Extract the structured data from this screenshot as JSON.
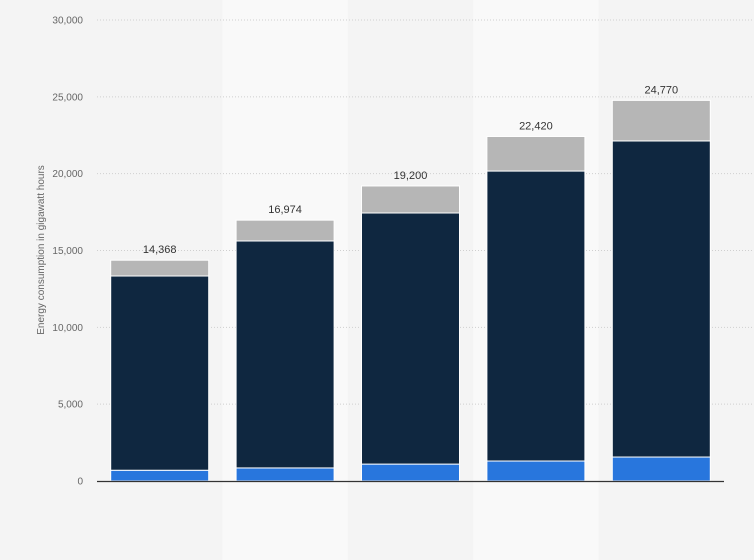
{
  "chart_data": {
    "type": "bar",
    "stacked": true,
    "title": "",
    "xlabel": "",
    "ylabel": "Energy consumption in gigawatt hours",
    "ylim": [
      0,
      30000
    ],
    "yticks": [
      0,
      5000,
      10000,
      15000,
      20000,
      25000,
      30000
    ],
    "ytick_labels": [
      "0",
      "5,000",
      "10,000",
      "15,000",
      "20,000",
      "25,000",
      "30,000"
    ],
    "grid": true,
    "categories": [
      "",
      "",
      "",
      "",
      ""
    ],
    "series": [
      {
        "values": [
          700,
          850,
          1100,
          1300,
          1560
        ],
        "color": "#2876dd"
      },
      {
        "values": [
          12640,
          14770,
          16340,
          18870,
          20570
        ],
        "color": "#0f2740"
      },
      {
        "values": [
          1028,
          1354,
          1760,
          2250,
          2640
        ],
        "color": "#b6b6b6"
      }
    ],
    "totals": [
      14368,
      16974,
      19200,
      22420,
      24770
    ],
    "total_labels": [
      "14,368",
      "16,974",
      "19,200",
      "22,420",
      "24,770"
    ]
  }
}
